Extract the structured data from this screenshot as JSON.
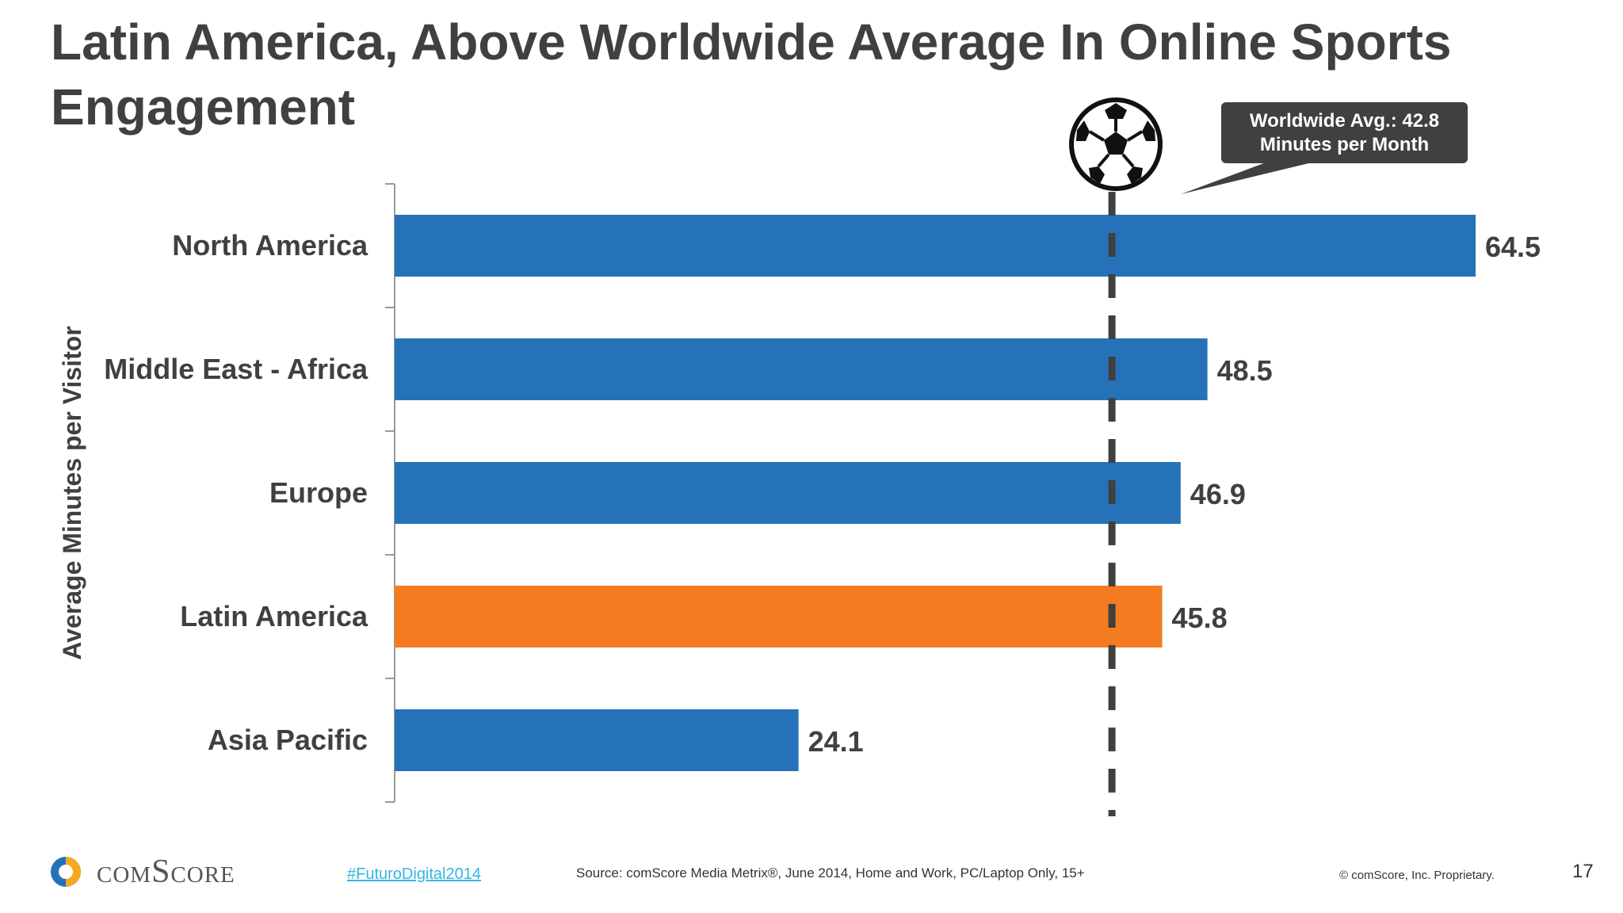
{
  "title": "Latin America, Above Worldwide Average In Online Sports Engagement",
  "callout": {
    "line1": "Worldwide Avg.: 42.8",
    "line2": "Minutes per Month"
  },
  "chart_data": {
    "type": "bar",
    "orientation": "horizontal",
    "ylabel": "Average Minutes per Visitor",
    "categories": [
      "North America",
      "Middle East - Africa",
      "Europe",
      "Latin America",
      "Asia Pacific"
    ],
    "values": [
      64.5,
      48.5,
      46.9,
      45.8,
      24.1
    ],
    "data_labels": [
      "64.5",
      "48.5",
      "46.9",
      "45.8",
      "24.1"
    ],
    "highlight": "Latin America",
    "reference_line": {
      "value": 42.8,
      "style": "dashed"
    },
    "xlim": [
      0,
      64.5
    ],
    "colors": {
      "default": "#2572b9",
      "highlight": "#f47b20",
      "reference": "#404040"
    }
  },
  "footer": {
    "logo": "comScore",
    "hashtag": "#FuturoDigital2014",
    "source": "Source: comScore Media Metrix®, June 2014, Home and Work, PC/Laptop Only, 15+",
    "copyright": "© comScore, Inc. Proprietary.",
    "page_number": "17"
  }
}
